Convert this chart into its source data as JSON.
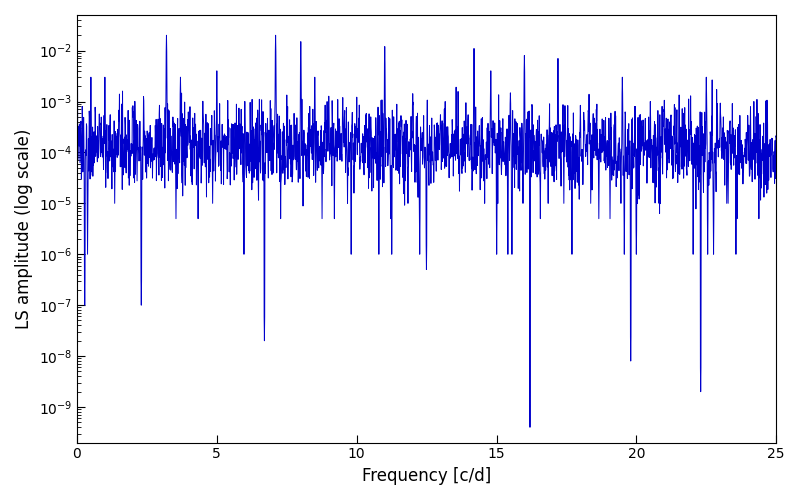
{
  "title": "",
  "xlabel": "Frequency [c/d]",
  "ylabel": "LS amplitude (log scale)",
  "line_color": "#0000cc",
  "line_width": 0.7,
  "xlim": [
    0,
    25
  ],
  "ylim_log": [
    2e-10,
    0.05
  ],
  "yscale": "log",
  "yticks": [
    1e-09,
    1e-08,
    1e-07,
    1e-06,
    1e-05,
    0.0001,
    0.001,
    0.01
  ],
  "figsize": [
    8.0,
    5.0
  ],
  "dpi": 100,
  "bg_color": "#ffffff",
  "seed": 137,
  "n_points": 2500,
  "freq_max": 25.0,
  "base_level": 0.00013,
  "log_sigma": 0.9
}
